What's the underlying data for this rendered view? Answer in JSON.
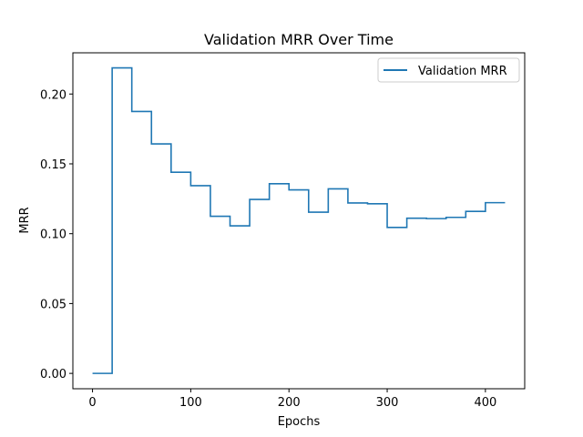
{
  "chart_data": {
    "type": "line",
    "title": "Validation MRR Over Time",
    "xlabel": "Epochs",
    "ylabel": "MRR",
    "xlim": [
      -20,
      440
    ],
    "ylim": [
      -0.011,
      0.2295
    ],
    "xticks": [
      0,
      100,
      200,
      300,
      400
    ],
    "xtick_labels": [
      "0",
      "100",
      "200",
      "300",
      "400"
    ],
    "yticks": [
      0.0,
      0.05,
      0.1,
      0.15,
      0.2
    ],
    "ytick_labels": [
      "0.00",
      "0.05",
      "0.10",
      "0.15",
      "0.20"
    ],
    "grid": false,
    "legend_position": "upper right",
    "series": [
      {
        "name": "Validation MRR",
        "color": "#1f77b4",
        "step": "post",
        "x": [
          0,
          20,
          40,
          60,
          80,
          100,
          120,
          140,
          160,
          180,
          200,
          220,
          240,
          260,
          280,
          300,
          320,
          340,
          360,
          380,
          400,
          420
        ],
        "y": [
          0.0,
          0.2187,
          0.1875,
          0.1643,
          0.144,
          0.1344,
          0.1125,
          0.1056,
          0.1245,
          0.1358,
          0.1314,
          0.1154,
          0.1321,
          0.122,
          0.1214,
          0.1045,
          0.1111,
          0.1108,
          0.1117,
          0.116,
          0.1222,
          0.1222
        ]
      }
    ]
  }
}
